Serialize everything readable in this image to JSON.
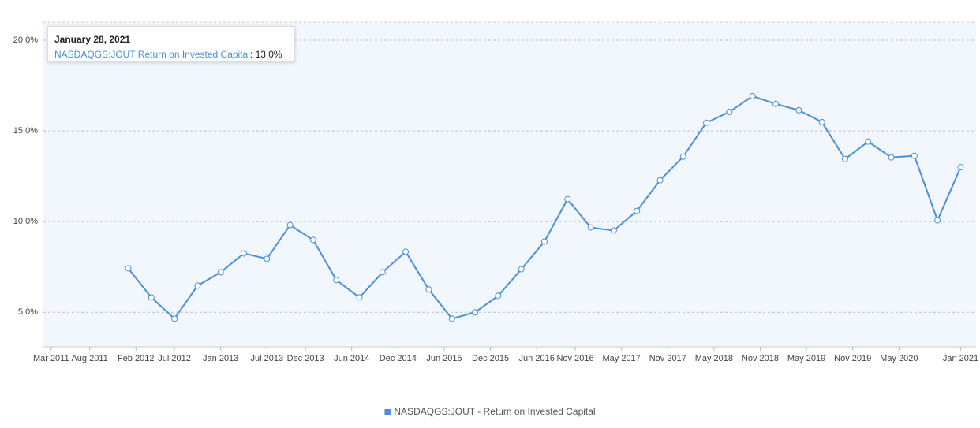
{
  "chart_data": {
    "type": "line",
    "x": [
      "2012-01",
      "2012-04",
      "2012-07",
      "2012-10",
      "2013-01",
      "2013-04",
      "2013-07",
      "2013-10",
      "2014-01",
      "2014-04",
      "2014-07",
      "2014-10",
      "2015-01",
      "2015-04",
      "2015-07",
      "2015-10",
      "2016-01",
      "2016-04",
      "2016-07",
      "2016-10",
      "2017-01",
      "2017-04",
      "2017-07",
      "2017-10",
      "2018-01",
      "2018-04",
      "2018-07",
      "2018-10",
      "2019-01",
      "2019-04",
      "2019-07",
      "2019-10",
      "2020-01",
      "2020-04",
      "2020-07",
      "2020-10",
      "2021-01"
    ],
    "series": [
      {
        "name": "NASDAQGS:JOUT - Return on Invested Capital",
        "color": "#4a90d9",
        "values": [
          7.43,
          5.82,
          4.65,
          6.47,
          7.21,
          8.25,
          7.95,
          9.81,
          8.99,
          6.78,
          5.82,
          7.21,
          8.34,
          6.26,
          4.65,
          5.0,
          5.91,
          7.38,
          8.9,
          11.24,
          9.68,
          9.51,
          10.59,
          12.28,
          13.58,
          15.45,
          16.05,
          16.92,
          16.49,
          16.14,
          15.49,
          13.45,
          14.41,
          13.54,
          13.63,
          10.07,
          13.0
        ]
      }
    ],
    "ylim": [
      3.1,
      21
    ],
    "yticks": [
      {
        "value": 5,
        "label": "5.0%"
      },
      {
        "value": 10,
        "label": "10.0%"
      },
      {
        "value": 15,
        "label": "15.0%"
      },
      {
        "value": 20,
        "label": "20.0%"
      }
    ],
    "xlim": [
      "2011-02",
      "2021-03"
    ],
    "xticks": [
      {
        "value": "2011-03",
        "label": "Mar 2011"
      },
      {
        "value": "2011-08",
        "label": "Aug 2011"
      },
      {
        "value": "2012-02",
        "label": "Feb 2012"
      },
      {
        "value": "2012-07",
        "label": "Jul 2012"
      },
      {
        "value": "2013-01",
        "label": "Jan 2013"
      },
      {
        "value": "2013-07",
        "label": "Jul 2013"
      },
      {
        "value": "2013-12",
        "label": "Dec 2013"
      },
      {
        "value": "2014-06",
        "label": "Jun 2014"
      },
      {
        "value": "2014-12",
        "label": "Dec 2014"
      },
      {
        "value": "2015-06",
        "label": "Jun 2015"
      },
      {
        "value": "2015-12",
        "label": "Dec 2015"
      },
      {
        "value": "2016-06",
        "label": "Jun 2016"
      },
      {
        "value": "2016-11",
        "label": "Nov 2016"
      },
      {
        "value": "2017-05",
        "label": "May 2017"
      },
      {
        "value": "2017-11",
        "label": "Nov 2017"
      },
      {
        "value": "2018-05",
        "label": "May 2018"
      },
      {
        "value": "2018-11",
        "label": "Nov 2018"
      },
      {
        "value": "2019-05",
        "label": "May 2019"
      },
      {
        "value": "2019-11",
        "label": "Nov 2019"
      },
      {
        "value": "2020-05",
        "label": "May 2020"
      },
      {
        "value": "2021-01",
        "label": "Jan 2021"
      }
    ],
    "grid": true,
    "legend": "bottom",
    "tooltip": {
      "date": "January 28, 2021",
      "series": "NASDAQGS:JOUT Return on Invested Capital",
      "separator": ": ",
      "value": "13.0%"
    }
  }
}
